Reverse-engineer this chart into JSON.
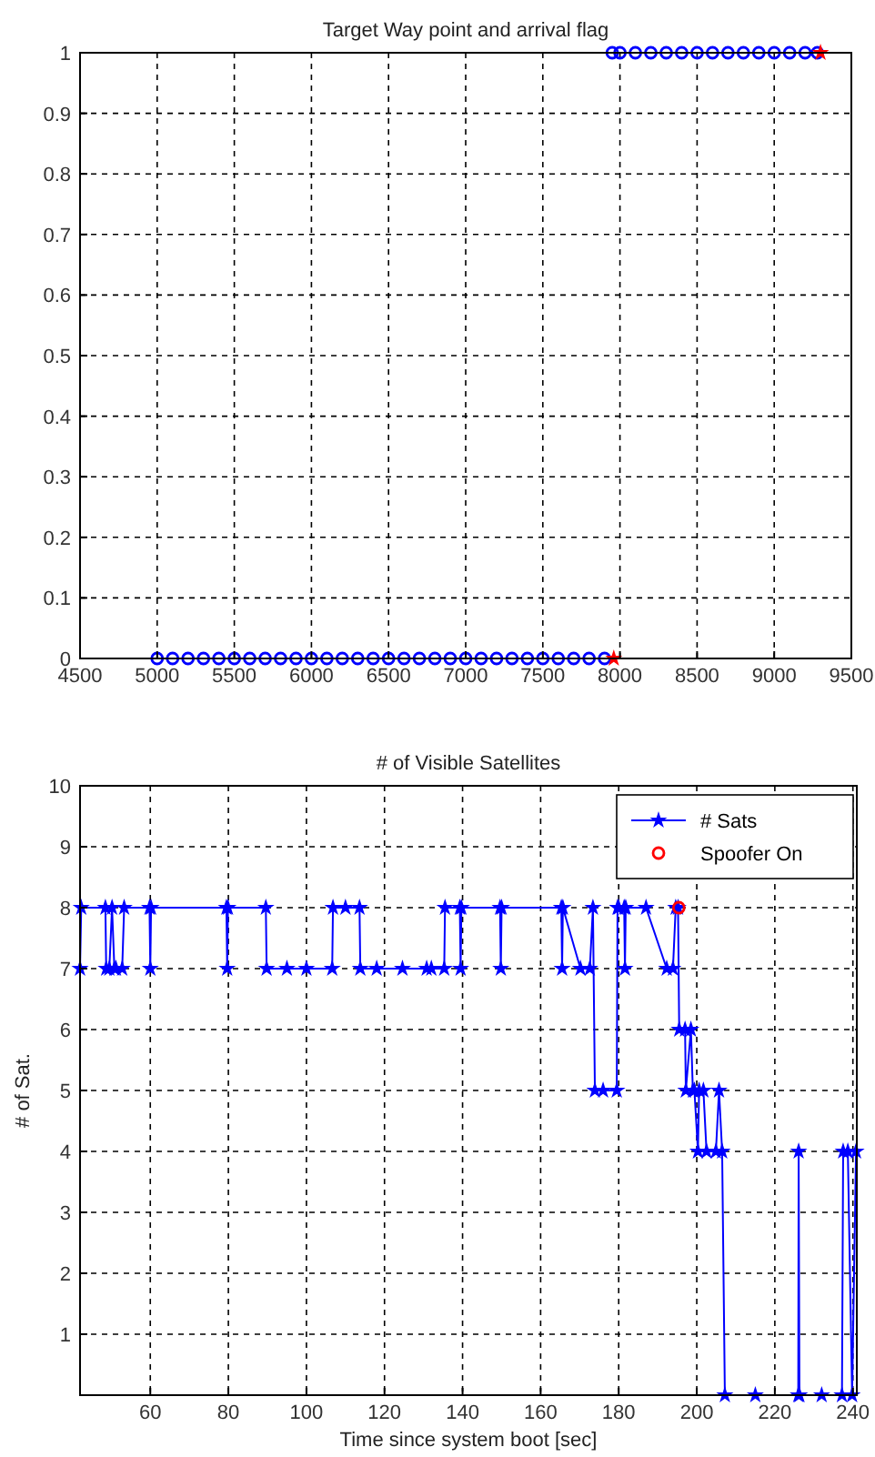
{
  "chart_data": [
    {
      "type": "scatter",
      "title": "Target Way point and arrival flag",
      "xlim": [
        4500,
        9500
      ],
      "xticks": [
        4500,
        5000,
        5500,
        6000,
        6500,
        7000,
        7500,
        8000,
        8500,
        9000,
        9500
      ],
      "ylim": [
        0,
        1
      ],
      "yticks": [
        0,
        0.1,
        0.2,
        0.3,
        0.4,
        0.5,
        0.6,
        0.7,
        0.8,
        0.9,
        1
      ],
      "grid": true,
      "legend": false,
      "series": [
        {
          "color": "#0000ff",
          "marker": "circle",
          "x": [
            5000,
            5100,
            5200,
            5300,
            5400,
            5500,
            5600,
            5700,
            5800,
            5900,
            6000,
            6100,
            6200,
            6300,
            6400,
            6500,
            6600,
            6700,
            6800,
            6900,
            7000,
            7100,
            7200,
            7300,
            7400,
            7500,
            7600,
            7700,
            7800,
            7900,
            7950,
            8000,
            8100,
            8200,
            8300,
            8400,
            8500,
            8600,
            8700,
            8800,
            8900,
            9000,
            9100,
            9200,
            9280
          ],
          "values": [
            0,
            0,
            0,
            0,
            0,
            0,
            0,
            0,
            0,
            0,
            0,
            0,
            0,
            0,
            0,
            0,
            0,
            0,
            0,
            0,
            0,
            0,
            0,
            0,
            0,
            0,
            0,
            0,
            0,
            0,
            1,
            1,
            1,
            1,
            1,
            1,
            1,
            1,
            1,
            1,
            1,
            1,
            1,
            1,
            1
          ]
        },
        {
          "color": "#ff0000",
          "marker": "star",
          "x": [
            7960,
            9300
          ],
          "values": [
            0,
            1
          ]
        }
      ]
    },
    {
      "type": "line",
      "title": "# of Visible Satellites",
      "xlabel": "Time since system boot [sec]",
      "ylabel": "# of Sat.",
      "xlim": [
        42,
        241
      ],
      "xticks": [
        60,
        80,
        100,
        120,
        140,
        160,
        180,
        200,
        220,
        240
      ],
      "ylim": [
        0,
        10
      ],
      "yticks": [
        {
          "value": 0,
          "label": null
        },
        1,
        2,
        3,
        4,
        5,
        6,
        7,
        8,
        9,
        10
      ],
      "grid": true,
      "legend": "top right",
      "series": [
        {
          "name": "# Sats",
          "color": "#0000ff",
          "marker": "star",
          "x": [
            42,
            42.3,
            48.5,
            48.7,
            49.5,
            50.2,
            50.8,
            51.2,
            52.8,
            53.3,
            59.8,
            60,
            60.2,
            79.5,
            79.7,
            79.9,
            89.6,
            89.8,
            95,
            100,
            106.6,
            106.8,
            110,
            113.6,
            113.8,
            118,
            124.6,
            130.8,
            132,
            135.3,
            135.5,
            139.3,
            139.5,
            139.7,
            149.6,
            149.8,
            150,
            165.3,
            165.5,
            165.7,
            170.2,
            172.6,
            173.4,
            173.9,
            176,
            179.5,
            179.7,
            180,
            181.4,
            181.6,
            181.8,
            187,
            192.3,
            193.9,
            194.6,
            195.2,
            195.5,
            197,
            197.2,
            198.5,
            199,
            199.4,
            200.3,
            200.6,
            201.7,
            202.5,
            204.9,
            205.7,
            206.5,
            207.2,
            215,
            226,
            226.1,
            226.3,
            232,
            237.2,
            237.5,
            238.7,
            239.8,
            240.8
          ],
          "values": [
            7,
            8,
            8,
            7,
            7,
            8,
            7,
            7,
            7,
            8,
            8,
            7,
            8,
            8,
            7,
            8,
            8,
            7,
            7,
            7,
            7,
            8,
            8,
            8,
            7,
            7,
            7,
            7,
            7,
            7,
            8,
            8,
            7,
            8,
            8,
            7,
            8,
            8,
            7,
            8,
            7,
            7,
            8,
            5,
            5,
            5,
            8,
            8,
            8,
            7,
            8,
            8,
            7,
            7,
            8,
            8,
            6,
            6,
            5,
            6,
            5,
            5,
            4,
            5,
            5,
            4,
            4,
            5,
            4,
            0,
            0,
            0,
            4,
            0,
            0,
            0,
            4,
            4,
            0,
            4
          ]
        },
        {
          "name": "Spoofer On",
          "type": "scatter",
          "color": "#ff0000",
          "marker": "circle",
          "x": [
            195.4
          ],
          "values": [
            8
          ]
        }
      ]
    }
  ]
}
